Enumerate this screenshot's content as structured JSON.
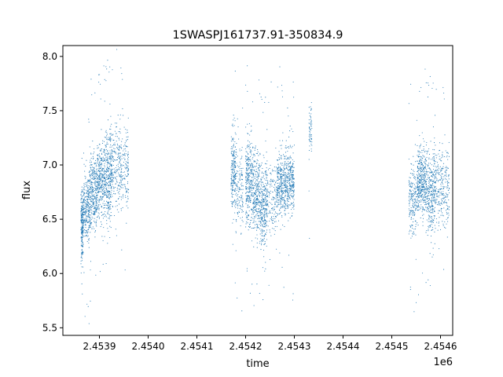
{
  "chart_data": {
    "type": "scatter",
    "title": "1SWASPJ161737.91-350834.9",
    "xlabel": "time",
    "ylabel": "flux",
    "x_offset_label": "1e6",
    "xlim": [
      2453825,
      2454625
    ],
    "ylim": [
      5.43,
      8.1
    ],
    "x_ticks": [
      2453900,
      2454000,
      2454100,
      2454200,
      2454300,
      2454400,
      2454500,
      2454600
    ],
    "x_tick_labels": [
      "2.4539",
      "2.4540",
      "2.4541",
      "2.4542",
      "2.4543",
      "2.4544",
      "2.4545",
      "2.4546"
    ],
    "y_ticks": [
      5.5,
      6.0,
      6.5,
      7.0,
      7.5,
      8.0
    ],
    "y_tick_labels": [
      "5.5",
      "6.0",
      "6.5",
      "7.0",
      "7.5",
      "8.0"
    ],
    "grid": false,
    "legend": "none",
    "point_color": "#1f77b4",
    "segments": [
      {
        "x_start": 2453862,
        "x_end": 2453867,
        "y_mean": 6.45,
        "y_spread": 0.15,
        "density": 220
      },
      {
        "x_start": 2453867,
        "x_end": 2453880,
        "y_mean": 6.6,
        "y_spread": 0.16,
        "density": 260
      },
      {
        "x_start": 2453880,
        "x_end": 2453895,
        "y_mean": 6.75,
        "y_spread": 0.18,
        "density": 320
      },
      {
        "x_start": 2453895,
        "x_end": 2453912,
        "y_mean": 6.88,
        "y_spread": 0.18,
        "density": 340
      },
      {
        "x_start": 2453912,
        "x_end": 2453925,
        "y_mean": 6.9,
        "y_spread": 0.22,
        "density": 300
      },
      {
        "x_start": 2453925,
        "x_end": 2453960,
        "y_mean": 6.98,
        "y_spread": 0.2,
        "density": 360
      },
      {
        "x_start": 2454170,
        "x_end": 2454180,
        "y_mean": 6.95,
        "y_spread": 0.2,
        "density": 220
      },
      {
        "x_start": 2454180,
        "x_end": 2454195,
        "y_mean": 6.75,
        "y_spread": 0.18,
        "density": 140
      },
      {
        "x_start": 2454200,
        "x_end": 2454215,
        "y_mean": 6.85,
        "y_spread": 0.2,
        "density": 320
      },
      {
        "x_start": 2454215,
        "x_end": 2454230,
        "y_mean": 6.75,
        "y_spread": 0.2,
        "density": 280
      },
      {
        "x_start": 2454230,
        "x_end": 2454245,
        "y_mean": 6.62,
        "y_spread": 0.2,
        "density": 300
      },
      {
        "x_start": 2454245,
        "x_end": 2454265,
        "y_mean": 6.7,
        "y_spread": 0.16,
        "density": 140
      },
      {
        "x_start": 2454265,
        "x_end": 2454282,
        "y_mean": 6.82,
        "y_spread": 0.15,
        "density": 320
      },
      {
        "x_start": 2454282,
        "x_end": 2454300,
        "y_mean": 6.85,
        "y_spread": 0.15,
        "density": 320
      },
      {
        "x_start": 2454330,
        "x_end": 2454336,
        "y_mean": 7.3,
        "y_spread": 0.12,
        "density": 60
      },
      {
        "x_start": 2454535,
        "x_end": 2454552,
        "y_mean": 6.68,
        "y_spread": 0.15,
        "density": 200
      },
      {
        "x_start": 2454552,
        "x_end": 2454572,
        "y_mean": 6.85,
        "y_spread": 0.16,
        "density": 420
      },
      {
        "x_start": 2454572,
        "x_end": 2454590,
        "y_mean": 6.75,
        "y_spread": 0.2,
        "density": 320
      },
      {
        "x_start": 2454590,
        "x_end": 2454618,
        "y_mean": 6.8,
        "y_spread": 0.18,
        "density": 260
      }
    ]
  }
}
